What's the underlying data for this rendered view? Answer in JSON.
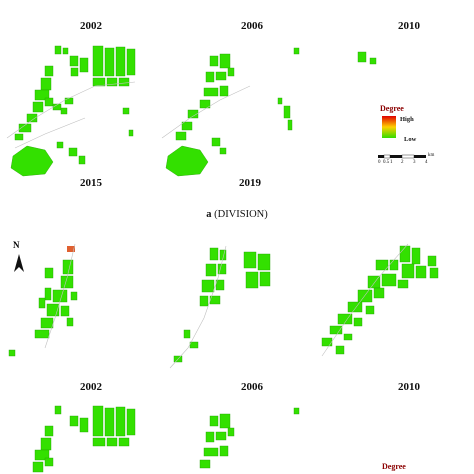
{
  "section_a": {
    "year_labels_top": [
      "2002",
      "2006",
      "2010"
    ],
    "year_labels_bottom": [
      "2015",
      "2019"
    ],
    "caption_letter": "a",
    "caption_text": "(DIVISION)"
  },
  "section_b": {
    "year_labels": [
      "2002",
      "2006",
      "2010"
    ]
  },
  "legend": {
    "title": "Degree",
    "high_label": "High",
    "low_label": "Low",
    "scale_ticks": [
      "0",
      "0.5",
      "1",
      "2",
      "3",
      "4"
    ],
    "scale_unit": "km",
    "colors": {
      "high": "#e00000",
      "mid": "#ffd000",
      "low": "#33dd00"
    }
  },
  "legend_bottom": {
    "title": "Degree"
  },
  "north_arrow": {
    "label": "N"
  },
  "colors": {
    "patch": "#33e000",
    "patch_edge": "#22a000",
    "road": "#c0c0c0",
    "highlight": "#e06030"
  }
}
